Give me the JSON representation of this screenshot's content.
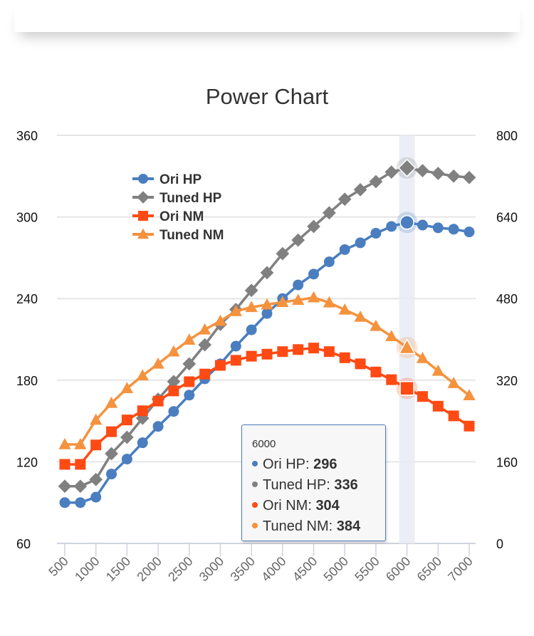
{
  "chart_data": {
    "type": "line",
    "title": "Power Chart",
    "xlabel": "",
    "ylabel_left": "",
    "ylabel_right": "",
    "x": [
      500,
      750,
      1000,
      1250,
      1500,
      1750,
      2000,
      2250,
      2500,
      2750,
      3000,
      3250,
      3500,
      3750,
      4000,
      4250,
      4500,
      4750,
      5000,
      5250,
      5500,
      5750,
      6000,
      6250,
      6500,
      6750,
      7000
    ],
    "x_tick_labels": [
      "500",
      "1000",
      "1500",
      "2000",
      "2500",
      "3000",
      "3500",
      "4000",
      "4500",
      "5000",
      "5500",
      "6000",
      "6500",
      "7000"
    ],
    "y_left": {
      "range": [
        60,
        360
      ],
      "ticks": [
        "60",
        "120",
        "180",
        "240",
        "300",
        "360"
      ]
    },
    "y_right": {
      "range": [
        0,
        800
      ],
      "ticks": [
        "0",
        "160",
        "320",
        "480",
        "640",
        "800"
      ]
    },
    "grid": true,
    "legend_position": "top-left",
    "series": [
      {
        "name": "Ori HP",
        "axis": "left",
        "color": "#4a7ebf",
        "marker": "circle",
        "values": [
          90,
          90,
          94,
          111,
          122,
          134,
          146,
          157,
          169,
          181,
          192,
          205,
          217,
          229,
          240,
          250,
          258,
          267,
          276,
          281,
          288,
          293,
          296,
          294,
          292,
          291,
          289
        ]
      },
      {
        "name": "Tuned HP",
        "axis": "left",
        "color": "#808080",
        "marker": "diamond",
        "values": [
          102,
          102,
          107,
          126,
          138,
          152,
          166,
          179,
          192,
          206,
          221,
          232,
          246,
          259,
          273,
          283,
          293,
          303,
          313,
          320,
          326,
          333,
          336,
          334,
          332,
          330,
          329
        ]
      },
      {
        "name": "Ori NM",
        "axis": "right",
        "color": "#ff4a14",
        "marker": "square",
        "values": [
          155,
          155,
          193,
          219,
          242,
          260,
          279,
          299,
          317,
          332,
          349,
          359,
          367,
          371,
          376,
          380,
          383,
          376,
          364,
          352,
          336,
          321,
          304,
          288,
          269,
          250,
          230
        ]
      },
      {
        "name": "Tuned NM",
        "axis": "right",
        "color": "#f5923e",
        "marker": "triangle",
        "values": [
          194,
          194,
          242,
          275,
          304,
          329,
          352,
          376,
          399,
          419,
          436,
          455,
          463,
          468,
          473,
          477,
          482,
          472,
          458,
          444,
          426,
          406,
          384,
          363,
          338,
          314,
          290
        ]
      }
    ],
    "highlight_x": 6000
  },
  "tooltip": {
    "header": "6000",
    "rows": [
      {
        "label": "Ori HP: ",
        "value": "296",
        "color": "#4a7ebf"
      },
      {
        "label": "Tuned HP: ",
        "value": "336",
        "color": "#808080"
      },
      {
        "label": "Ori NM: ",
        "value": "304",
        "color": "#ff4a14"
      },
      {
        "label": "Tuned NM: ",
        "value": "384",
        "color": "#f5923e"
      }
    ]
  }
}
